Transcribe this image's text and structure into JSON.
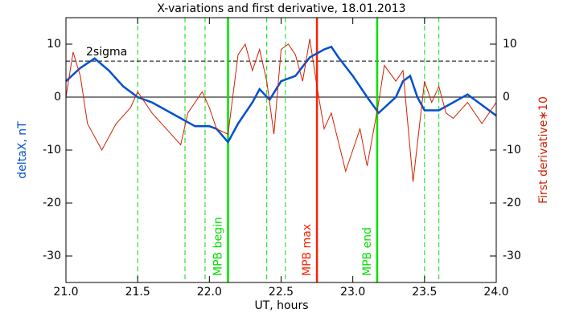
{
  "chart_data": {
    "type": "line",
    "title": "X-variations and first derivative, 18.01.2013",
    "x_label": "UT, hours",
    "y_label": "deltaX, nT",
    "y2_label": "First derivative∗10",
    "xlim": [
      21,
      24
    ],
    "xticks": [
      {
        "value": 21,
        "label": "21.0"
      },
      21.5,
      {
        "value": 22,
        "label": "22.0"
      },
      22.5,
      {
        "value": 23,
        "label": "23.0"
      },
      23.5,
      {
        "value": 24,
        "label": "24.0"
      }
    ],
    "ylim": [
      -35,
      15
    ],
    "yticks": [
      -30,
      -20,
      -10,
      0,
      10
    ],
    "y2lim": [
      -35,
      15
    ],
    "y2ticks": [
      -30,
      -20,
      -10,
      0,
      10
    ],
    "threshold": {
      "label": "2sigma",
      "value": 6.8
    },
    "dashed_lines": [
      21.5,
      21.83,
      21.97,
      22.4,
      22.53,
      23.5,
      23.6
    ],
    "annotations": [
      {
        "text": "MPB begin",
        "x": 22.13,
        "color": "#00e000"
      },
      {
        "text": "MPB max",
        "x": 22.75,
        "color": "#ff2000"
      },
      {
        "text": "MPB end",
        "x": 23.17,
        "color": "#00e000"
      }
    ],
    "series": [
      {
        "name": "deltaX",
        "color": "#0050d0",
        "x": [
          21.0,
          21.1,
          21.2,
          21.3,
          21.4,
          21.5,
          21.6,
          21.7,
          21.8,
          21.9,
          22.0,
          22.05,
          22.13,
          22.2,
          22.3,
          22.35,
          22.42,
          22.5,
          22.6,
          22.7,
          22.8,
          22.85,
          22.9,
          23.0,
          23.1,
          23.18,
          23.3,
          23.35,
          23.4,
          23.45,
          23.5,
          23.6,
          23.7,
          23.8,
          23.9,
          24.0
        ],
        "values": [
          3,
          5.5,
          7.3,
          5,
          2,
          0,
          -1,
          -2.5,
          -4,
          -5.5,
          -5.5,
          -6,
          -8.5,
          -5,
          -1,
          1.5,
          -0.5,
          3,
          4,
          7.5,
          9,
          9.5,
          7.5,
          4,
          0,
          -3,
          0,
          3,
          4,
          0,
          -2.5,
          -2.5,
          -1,
          0.5,
          -1.5,
          -3.5
        ]
      },
      {
        "name": "First derivative",
        "color": "#d02000",
        "axis": "y2",
        "x": [
          21.0,
          21.05,
          21.1,
          21.15,
          21.25,
          21.35,
          21.45,
          21.5,
          21.6,
          21.7,
          21.8,
          21.85,
          21.95,
          22.0,
          22.05,
          22.13,
          22.2,
          22.25,
          22.3,
          22.35,
          22.4,
          22.45,
          22.5,
          22.55,
          22.6,
          22.65,
          22.7,
          22.75,
          22.8,
          22.85,
          22.95,
          23.0,
          23.05,
          23.1,
          23.18,
          23.22,
          23.3,
          23.35,
          23.42,
          23.5,
          23.55,
          23.6,
          23.65,
          23.7,
          23.8,
          23.9,
          24.0
        ],
        "values": [
          0,
          8.5,
          4,
          -5,
          -10,
          -5,
          -2,
          1,
          -3,
          -6,
          -9,
          -3,
          1,
          -2,
          -6,
          -7,
          8,
          10,
          5,
          9,
          3,
          -7,
          9,
          10,
          8,
          3,
          11,
          2,
          -6,
          -3,
          -14,
          -10,
          -6,
          -13,
          -1,
          6,
          3,
          5,
          -16,
          3,
          -1,
          2,
          -3,
          -4,
          -1,
          -5,
          -1
        ]
      }
    ]
  }
}
